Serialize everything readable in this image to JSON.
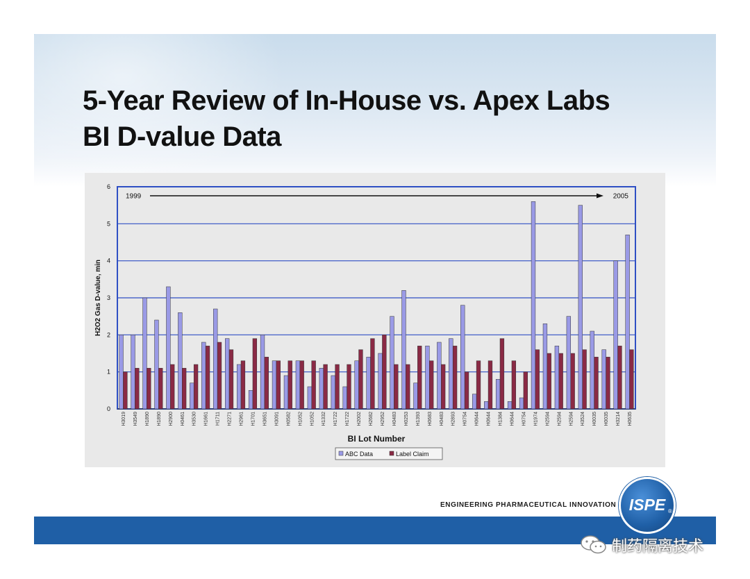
{
  "slide": {
    "title_line1": "5-Year Review of In-House vs. Apex Labs",
    "title_line2": "BI D-value Data",
    "tagline": "ENGINEERING PHARMACEUTICAL INNOVATION",
    "logo_text": "ISPE",
    "logo_mark": "®",
    "watermark_text": "制药隔离技术",
    "watermark_icon": "wechat-icon"
  },
  "colors": {
    "abc": "#9a9ae6",
    "label": "#8a2a45",
    "grid": "#2e4fc4",
    "plot_bg": "#e9e9e9",
    "bar_blue": "#1f5fa6"
  },
  "chart_data": {
    "type": "bar",
    "title": "",
    "xlabel": "BI Lot Number",
    "ylabel": "H2O2 Gas D-value, min",
    "ylim": [
      0,
      6
    ],
    "yticks": [
      "0",
      "1",
      "2",
      "3",
      "4",
      "5",
      "6"
    ],
    "annotation_start": "1999",
    "annotation_end": "2005",
    "legend_position": "bottom",
    "categories": [
      "H3019",
      "H3549",
      "H1890",
      "H1890",
      "H2900",
      "H0461",
      "H3530",
      "H1661",
      "H1711",
      "H2271",
      "H2961",
      "H1701",
      "H3651",
      "H3091",
      "H0582",
      "H1052",
      "H1052",
      "H1332",
      "H1722",
      "H1722",
      "H2002",
      "H2682",
      "H2952",
      "H0483",
      "H0253",
      "H1393",
      "H0683",
      "H0483",
      "H2893",
      "H0754",
      "H0644",
      "H0644",
      "H1384",
      "H0644",
      "H0754",
      "H1974",
      "H2594",
      "H2594",
      "H2594",
      "H3524",
      "H0035",
      "H0035",
      "H3214",
      "H0635"
    ],
    "series": [
      {
        "name": "ABC Data",
        "values": [
          2.0,
          2.0,
          3.0,
          2.4,
          3.3,
          2.6,
          0.7,
          1.8,
          2.7,
          1.9,
          1.2,
          0.5,
          2.0,
          1.3,
          0.9,
          1.3,
          0.6,
          1.1,
          0.9,
          0.6,
          1.3,
          1.4,
          1.5,
          2.5,
          3.2,
          0.7,
          1.7,
          1.8,
          1.9,
          2.8,
          0.4,
          0.2,
          0.8,
          0.2,
          0.3,
          5.6,
          2.3,
          1.7,
          2.5,
          5.5,
          2.1,
          1.6,
          4.0,
          4.7
        ]
      },
      {
        "name": "Label Claim",
        "values": [
          1.0,
          1.1,
          1.1,
          1.1,
          1.2,
          1.1,
          1.2,
          1.7,
          1.8,
          1.6,
          1.3,
          1.9,
          1.4,
          1.3,
          1.3,
          1.3,
          1.3,
          1.2,
          1.2,
          1.2,
          1.6,
          1.9,
          2.0,
          1.2,
          1.2,
          1.7,
          1.3,
          1.2,
          1.7,
          1.0,
          1.3,
          1.3,
          1.9,
          1.3,
          1.0,
          1.6,
          1.5,
          1.5,
          1.5,
          1.6,
          1.4,
          1.4,
          1.7,
          1.6
        ]
      }
    ]
  }
}
